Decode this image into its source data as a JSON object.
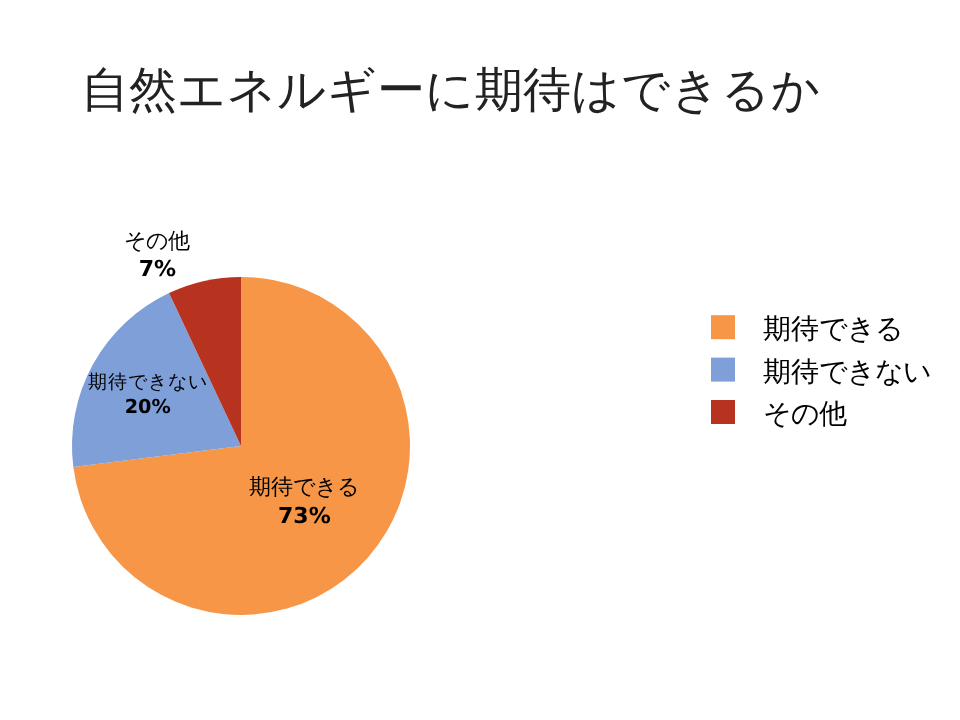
{
  "chart_data": {
    "type": "pie",
    "title": "自然エネルギーに期待はできるか",
    "categories": [
      "期待できる",
      "期待できない",
      "その他"
    ],
    "values": [
      73,
      20,
      7
    ],
    "colors": [
      "#f79646",
      "#7f9fd9",
      "#b83220"
    ],
    "value_labels": [
      "73%",
      "20%",
      "7%"
    ],
    "legend": "right"
  }
}
